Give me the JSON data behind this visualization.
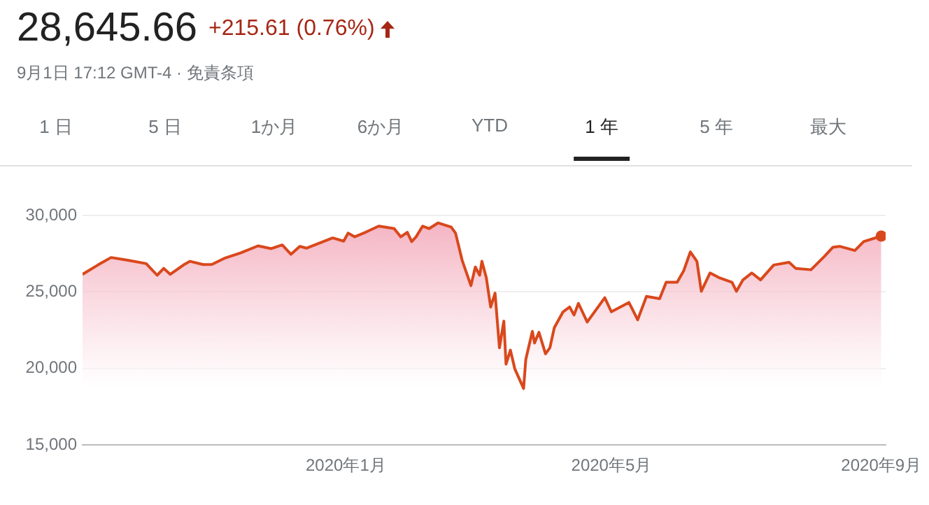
{
  "chart_data": {
    "type": "area",
    "title": "28,645.66",
    "subtitle": "+215.61 (0.76%)",
    "annotations": [
      "9月1日 17:12 GMT-4 · 免責条項",
      "1 日",
      "5 日",
      "1か月",
      "6か月",
      "YTD",
      "1 年",
      "5 年",
      "最大"
    ],
    "x": [
      "2019-09-03",
      "2019-09-10",
      "2019-09-16",
      "2019-09-24",
      "2019-10-02",
      "2019-10-07",
      "2019-10-10",
      "2019-10-13",
      "2019-10-19",
      "2019-10-22",
      "2019-10-28",
      "2019-11-01",
      "2019-11-07",
      "2019-11-14",
      "2019-11-22",
      "2019-11-28",
      "2019-12-03",
      "2019-12-07",
      "2019-12-11",
      "2019-12-14",
      "2019-12-26",
      "2019-12-31",
      "2020-01-02",
      "2020-01-05",
      "2020-01-10",
      "2020-01-16",
      "2020-01-23",
      "2020-01-26",
      "2020-01-29",
      "2020-01-31",
      "2020-02-02",
      "2020-02-05",
      "2020-02-08",
      "2020-02-12",
      "2020-02-18",
      "2020-02-20",
      "2020-02-23",
      "2020-02-27",
      "2020-02-29",
      "2020-03-02",
      "2020-03-03",
      "2020-03-05",
      "2020-03-07",
      "2020-03-09",
      "2020-03-11",
      "2020-03-13",
      "2020-03-14",
      "2020-03-16",
      "2020-03-18",
      "2020-03-22",
      "2020-03-23",
      "2020-03-26",
      "2020-03-27",
      "2020-03-29",
      "2020-04-01",
      "2020-04-03",
      "2020-04-05",
      "2020-04-09",
      "2020-04-12",
      "2020-04-14",
      "2020-04-16",
      "2020-04-20",
      "2020-04-28",
      "2020-05-01",
      "2020-05-09",
      "2020-05-13",
      "2020-05-17",
      "2020-05-23",
      "2020-05-26",
      "2020-05-31",
      "2020-06-03",
      "2020-06-06",
      "2020-06-09",
      "2020-06-11",
      "2020-06-15",
      "2020-06-19",
      "2020-06-25",
      "2020-06-27",
      "2020-06-30",
      "2020-07-04",
      "2020-07-08",
      "2020-07-14",
      "2020-07-21",
      "2020-07-24",
      "2020-07-31",
      "2020-08-06",
      "2020-08-10",
      "2020-08-13",
      "2020-08-20",
      "2020-08-24",
      "2020-09-01"
    ],
    "series": [
      {
        "color": "#d9481c",
        "values": [
          26150,
          26760,
          27250,
          27060,
          26850,
          26090,
          26540,
          26150,
          26760,
          27000,
          26790,
          26800,
          27220,
          27550,
          28010,
          27830,
          28070,
          27460,
          27980,
          27860,
          28530,
          28320,
          28840,
          28600,
          28900,
          29300,
          29140,
          28600,
          28900,
          28290,
          28600,
          29300,
          29140,
          29510,
          29240,
          28840,
          27070,
          25410,
          26630,
          26090,
          27000,
          25940,
          24010,
          24920,
          21350,
          23090,
          20280,
          21190,
          19970,
          18690,
          20580,
          22420,
          21660,
          22360,
          20950,
          21350,
          22660,
          23700,
          24010,
          23490,
          24250,
          23030,
          24620,
          23700,
          24310,
          23180,
          24710,
          24560,
          25630,
          25630,
          26390,
          27610,
          27000,
          25040,
          26240,
          25940,
          25630,
          25040,
          25790,
          26240,
          25790,
          26760,
          26940,
          26540,
          26450,
          27310,
          27920,
          27980,
          27710,
          28290,
          28650
        ]
      }
    ],
    "xlim": [
      "2019-09-03",
      "2020-09-03"
    ],
    "xticks": [
      {
        "value": "2020-01-01",
        "label": "2020年1月"
      },
      {
        "value": "2020-05-01",
        "label": "2020年5月"
      },
      {
        "value": "2020-09-01",
        "label": "2020年9月"
      }
    ],
    "ylim": [
      15000,
      30000
    ],
    "yticks": [
      {
        "value": 15000,
        "label": "15,000"
      },
      {
        "value": 20000,
        "label": "20,000"
      },
      {
        "value": 25000,
        "label": "25,000"
      },
      {
        "value": 30000,
        "label": "30,000"
      }
    ],
    "grid": "y",
    "legend": false
  }
}
